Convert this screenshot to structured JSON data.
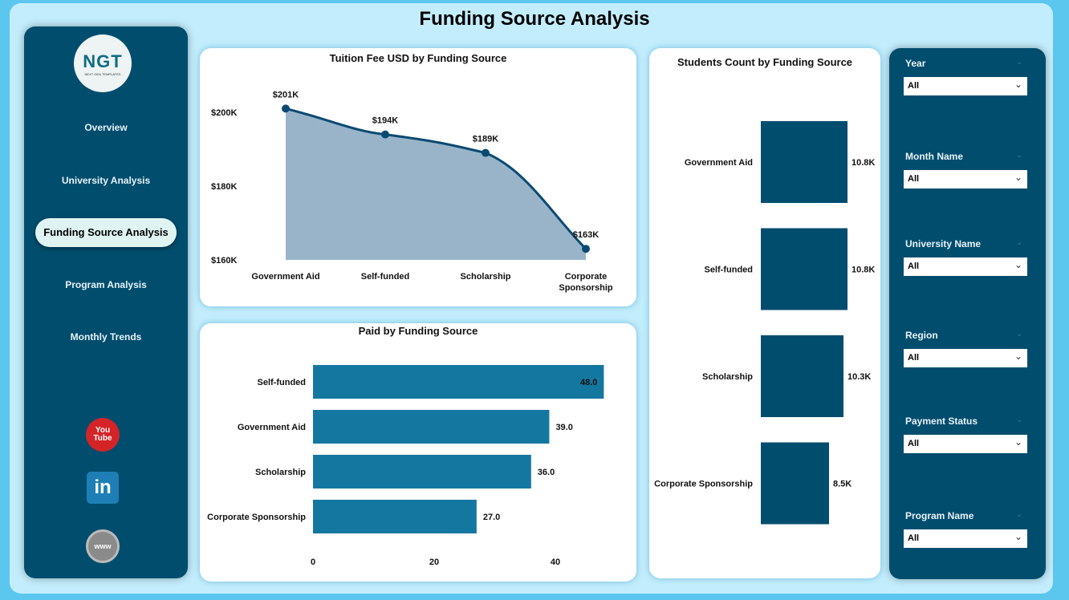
{
  "header": {
    "title": "Funding Source Analysis"
  },
  "logo": {
    "text": "NGT",
    "tagline": "NEXT GEN TEMPLATES"
  },
  "nav": [
    {
      "label": "Overview"
    },
    {
      "label": "University Analysis"
    },
    {
      "label": "Funding Source Analysis",
      "active": true
    },
    {
      "label": "Program Analysis"
    },
    {
      "label": "Monthly Trends"
    }
  ],
  "social": [
    {
      "icon": "youtube-icon",
      "label": "You Tube"
    },
    {
      "icon": "linkedin-icon",
      "label": "in"
    },
    {
      "icon": "website-icon",
      "label": "www"
    }
  ],
  "filters": [
    {
      "label": "Year",
      "value": "All"
    },
    {
      "label": "Month Name",
      "value": "All"
    },
    {
      "label": "University Name",
      "value": "All"
    },
    {
      "label": "Region",
      "value": "All"
    },
    {
      "label": "Payment Status",
      "value": "All"
    },
    {
      "label": "Program Name",
      "value": "All"
    }
  ],
  "colors": {
    "sidebar": "#004d6e",
    "background": "#c3edfc",
    "area": "#99b4c9",
    "line": "#0a4a72",
    "paid_bar": "#1477a0",
    "students_bar": "#004d6e"
  },
  "chart_data": [
    {
      "type": "area",
      "title": "Tuition Fee USD by Funding Source",
      "categories": [
        "Government Aid",
        "Self-funded",
        "Scholarship",
        "Corporate Sponsorship"
      ],
      "values": [
        201,
        194,
        189,
        163
      ],
      "data_labels": [
        "$201K",
        "$194K",
        "$189K",
        "$163K"
      ],
      "yticks": [
        "$160K",
        "$180K",
        "$200K"
      ],
      "ytick_values": [
        160,
        180,
        200
      ],
      "ylim": [
        160,
        200
      ],
      "unit": "K USD"
    },
    {
      "type": "bar",
      "orientation": "horizontal",
      "title": "Paid by Funding Source",
      "categories": [
        "Self-funded",
        "Government Aid",
        "Scholarship",
        "Corporate Sponsorship"
      ],
      "values": [
        48,
        39,
        36,
        27
      ],
      "data_labels": [
        "48.0",
        "39.0",
        "36.0",
        "27.0"
      ],
      "xticks": [
        "0",
        "20",
        "40"
      ],
      "xtick_values": [
        0,
        20,
        40
      ],
      "xlim": [
        0,
        48
      ]
    },
    {
      "type": "bar",
      "orientation": "horizontal",
      "title": "Students Count by Funding Source",
      "categories": [
        "Government Aid",
        "Self-funded",
        "Scholarship",
        "Corporate Sponsorship"
      ],
      "values": [
        10.8,
        10.8,
        10.3,
        8.5
      ],
      "data_labels": [
        "10.8K",
        "10.8K",
        "10.3K",
        "8.5K"
      ],
      "unit": "K"
    }
  ]
}
